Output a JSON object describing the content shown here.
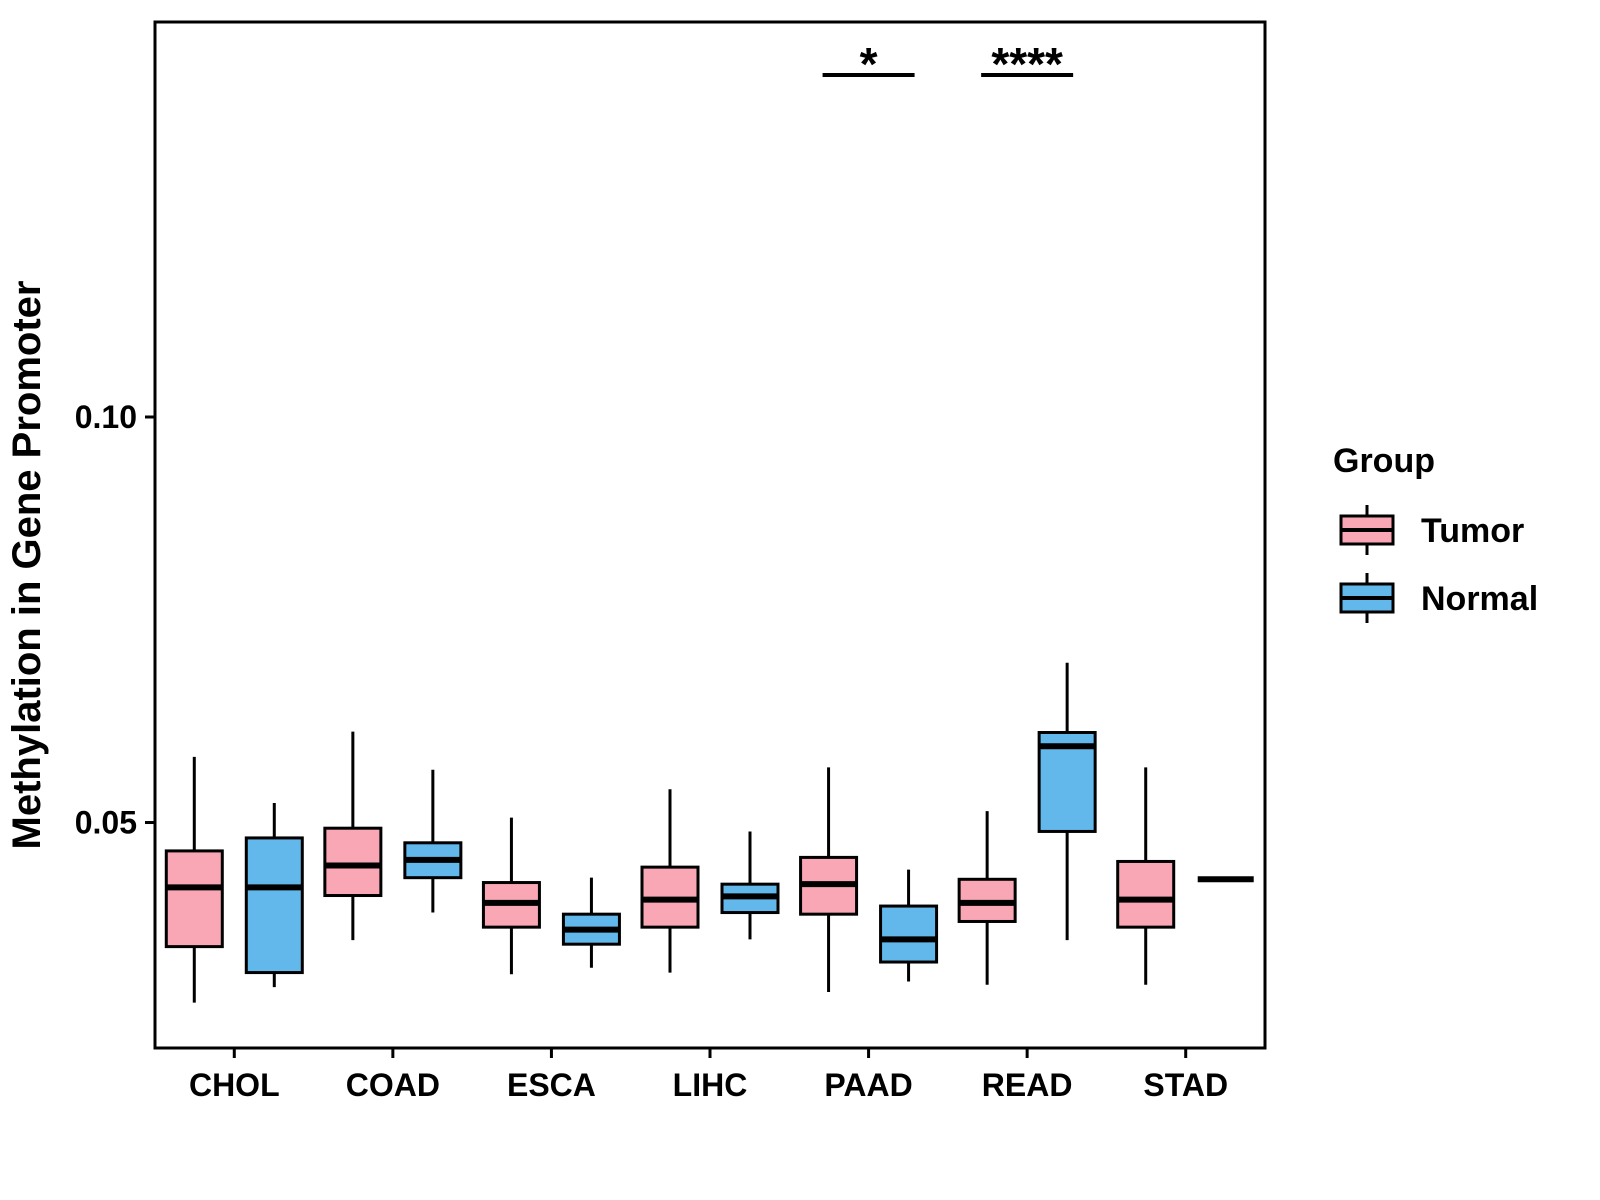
{
  "chart_data": {
    "type": "boxplot",
    "title": "",
    "xlabel": "",
    "ylabel": "Methylation in Gene Promoter",
    "categories": [
      "CHOL",
      "COAD",
      "ESCA",
      "LIHC",
      "PAAD",
      "READ",
      "STAD"
    ],
    "yticks": [
      0.05,
      0.1
    ],
    "ylim": [
      0.0222,
      0.1487
    ],
    "grid": false,
    "panel_border": true,
    "colors": {
      "tumor": "#F9A7B4",
      "normal": "#63B8EB",
      "line": "#000000"
    },
    "legend": {
      "title": "Group",
      "position": "right",
      "entries": [
        {
          "label": "Tumor",
          "color": "#F9A7B4"
        },
        {
          "label": "Normal",
          "color": "#63B8EB"
        }
      ]
    },
    "series": [
      {
        "name": "Tumor",
        "color": "#F9A7B4",
        "boxes": [
          {
            "category": "CHOL",
            "whisker_low": 0.0278,
            "q1": 0.0347,
            "median": 0.042,
            "q3": 0.0465,
            "whisker_high": 0.0581
          },
          {
            "category": "COAD",
            "whisker_low": 0.0355,
            "q1": 0.041,
            "median": 0.0447,
            "q3": 0.0493,
            "whisker_high": 0.0612
          },
          {
            "category": "ESCA",
            "whisker_low": 0.0313,
            "q1": 0.0371,
            "median": 0.0401,
            "q3": 0.0426,
            "whisker_high": 0.0506
          },
          {
            "category": "LIHC",
            "whisker_low": 0.0315,
            "q1": 0.0371,
            "median": 0.0405,
            "q3": 0.0445,
            "whisker_high": 0.0541
          },
          {
            "category": "PAAD",
            "whisker_low": 0.0291,
            "q1": 0.0387,
            "median": 0.0424,
            "q3": 0.0457,
            "whisker_high": 0.0568
          },
          {
            "category": "READ",
            "whisker_low": 0.03,
            "q1": 0.0378,
            "median": 0.0401,
            "q3": 0.043,
            "whisker_high": 0.0514
          },
          {
            "category": "STAD",
            "whisker_low": 0.03,
            "q1": 0.0371,
            "median": 0.0405,
            "q3": 0.0452,
            "whisker_high": 0.0568
          }
        ]
      },
      {
        "name": "Normal",
        "color": "#63B8EB",
        "boxes": [
          {
            "category": "CHOL",
            "whisker_low": 0.0297,
            "q1": 0.0315,
            "median": 0.042,
            "q3": 0.0481,
            "whisker_high": 0.0524
          },
          {
            "category": "COAD",
            "whisker_low": 0.0389,
            "q1": 0.0432,
            "median": 0.0454,
            "q3": 0.0475,
            "whisker_high": 0.0565
          },
          {
            "category": "ESCA",
            "whisker_low": 0.0321,
            "q1": 0.035,
            "median": 0.0368,
            "q3": 0.0387,
            "whisker_high": 0.0432
          },
          {
            "category": "LIHC",
            "whisker_low": 0.0356,
            "q1": 0.0389,
            "median": 0.0409,
            "q3": 0.0424,
            "whisker_high": 0.0489
          },
          {
            "category": "PAAD",
            "whisker_low": 0.0304,
            "q1": 0.0328,
            "median": 0.0356,
            "q3": 0.0397,
            "whisker_high": 0.0442
          },
          {
            "category": "READ",
            "whisker_low": 0.0355,
            "q1": 0.0489,
            "median": 0.0594,
            "q3": 0.0611,
            "whisker_high": 0.0697
          },
          {
            "category": "STAD",
            "whisker_low": 0.043,
            "q1": 0.043,
            "median": 0.043,
            "q3": 0.043,
            "whisker_high": 0.043
          }
        ]
      }
    ],
    "annotations": [
      {
        "label": "*",
        "category": "PAAD"
      },
      {
        "label": "****",
        "category": "READ"
      }
    ]
  }
}
